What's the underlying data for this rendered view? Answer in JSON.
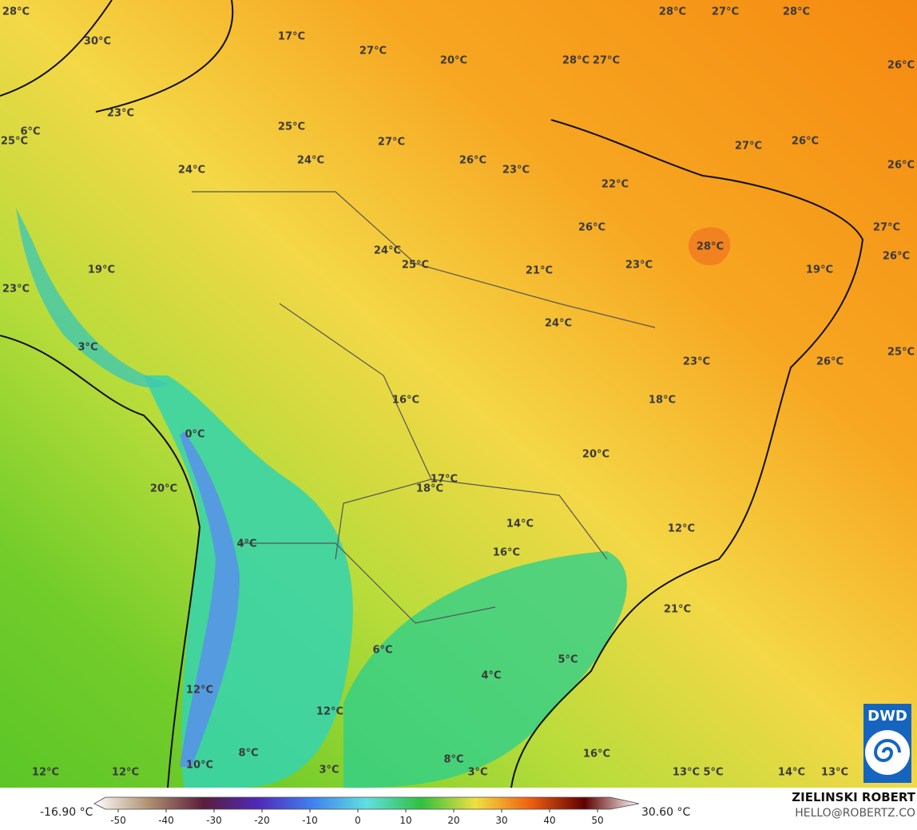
{
  "map": {
    "labels": [
      "28°C",
      "30°C",
      "17°C",
      "27°C",
      "20°C",
      "28°C",
      "27°C",
      "28°C",
      "27°C",
      "28°C",
      "26°C",
      "23°C",
      "25°C",
      "27°C",
      "6°C",
      "25°C",
      "24°C",
      "24°C",
      "26°C",
      "23°C",
      "22°C",
      "27°C",
      "26°C",
      "26°C",
      "26°C",
      "27°C",
      "24°C",
      "25°C",
      "28°C",
      "26°C",
      "21°C",
      "23°C",
      "19°C",
      "19°C",
      "23°C",
      "24°C",
      "3°C",
      "25°C",
      "23°C",
      "26°C",
      "16°C",
      "18°C",
      "0°C",
      "20°C",
      "17°C",
      "18°C",
      "20°C",
      "14°C",
      "12°C",
      "16°C",
      "4°C",
      "21°C",
      "6°C",
      "5°C",
      "4°C",
      "12°C",
      "12°C",
      "8°C",
      "16°C",
      "8°C",
      "10°C",
      "12°C",
      "12°C",
      "3°C",
      "3°C",
      "13°C",
      "5°C",
      "14°C",
      "13°C"
    ]
  },
  "colorbar": {
    "min_label": "-16.90 °C",
    "max_label": "30.60 °C",
    "ticks": [
      -50,
      -40,
      -30,
      -20,
      -10,
      0,
      10,
      20,
      30,
      40,
      50
    ]
  },
  "credits": {
    "name": "ZIELINSKI ROBERT",
    "contact": "HELLO@ROBERTZ.CO",
    "logo": "DWD"
  }
}
